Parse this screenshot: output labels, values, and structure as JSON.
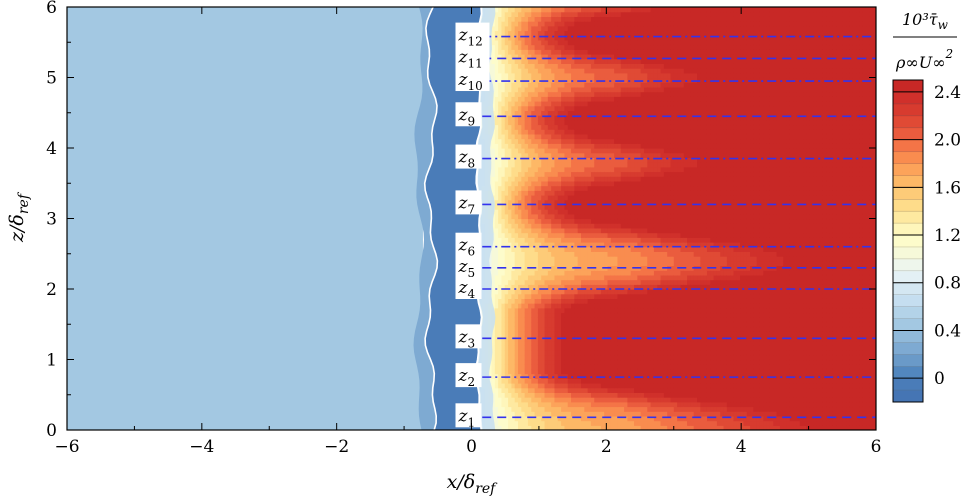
{
  "chart_data": {
    "type": "heatmap",
    "title": "",
    "xlabel": {
      "main": "x/δ",
      "sub": "ref"
    },
    "ylabel": {
      "main": "z/δ",
      "sub": "ref"
    },
    "xlim": [
      -6,
      6
    ],
    "ylim": [
      0,
      6
    ],
    "x_ticks": [
      -6,
      -4,
      -2,
      0,
      2,
      4,
      6
    ],
    "x_tick_labels": [
      "−6",
      "−4",
      "−2",
      "0",
      "2",
      "4",
      "6"
    ],
    "y_ticks": [
      0,
      1,
      2,
      3,
      4,
      5,
      6
    ],
    "y_tick_labels": [
      "0",
      "1",
      "2",
      "3",
      "4",
      "5",
      "6"
    ],
    "grid": false,
    "colorbar": {
      "label_numerator": "10³τ̄",
      "label_numerator_sub": "w",
      "label_denominator": "ρ∞U∞",
      "label_denominator_sup": "2",
      "range": [
        -0.2,
        2.5
      ],
      "levels": [
        -0.2,
        -0.1,
        0,
        0.1,
        0.2,
        0.3,
        0.4,
        0.5,
        0.6,
        0.7,
        0.8,
        0.9,
        1.0,
        1.1,
        1.2,
        1.3,
        1.4,
        1.5,
        1.6,
        1.7,
        1.8,
        1.9,
        2.0,
        2.1,
        2.2,
        2.3,
        2.4,
        2.5
      ],
      "ticks": [
        0,
        0.4,
        0.8,
        1.2,
        1.6,
        2.0,
        2.4
      ],
      "tick_labels": [
        "0",
        "0.4",
        "0.8",
        "1.2",
        "1.6",
        "2.0",
        "2.4"
      ],
      "colors": [
        "#4575b4",
        "#4a7cb8",
        "#5287be",
        "#6a9ac8",
        "#7eaad2",
        "#90b9da",
        "#a3c8e2",
        "#b3d3e8",
        "#c5def0",
        "#d4e7f2",
        "#e3f0f5",
        "#eef6ec",
        "#f6f9d9",
        "#fdfccb",
        "#fef6bb",
        "#fee9a0",
        "#fedc8a",
        "#fdcb78",
        "#fdb866",
        "#fca35a",
        "#f98c4f",
        "#f47447",
        "#ea5c3e",
        "#e04a35",
        "#d73b2f",
        "#d0302b",
        "#c82826"
      ]
    },
    "upstream_value": 0.45,
    "reattachment_x": 0.1,
    "separation_x": -0.6,
    "stations": [
      {
        "label": "z",
        "sub": "1",
        "z": 0.18,
        "style": "dashed"
      },
      {
        "label": "z",
        "sub": "2",
        "z": 0.75,
        "style": "dashdot"
      },
      {
        "label": "z",
        "sub": "3",
        "z": 1.3,
        "style": "dashed"
      },
      {
        "label": "z",
        "sub": "4",
        "z": 2.0,
        "style": "dashdot"
      },
      {
        "label": "z",
        "sub": "5",
        "z": 2.3,
        "style": "dashed"
      },
      {
        "label": "z",
        "sub": "6",
        "z": 2.6,
        "style": "dashdot"
      },
      {
        "label": "z",
        "sub": "7",
        "z": 3.2,
        "style": "dashed"
      },
      {
        "label": "z",
        "sub": "8",
        "z": 3.85,
        "style": "dashdot"
      },
      {
        "label": "z",
        "sub": "9",
        "z": 4.45,
        "style": "dashed"
      },
      {
        "label": "z",
        "sub": "10",
        "z": 4.95,
        "style": "dashdot"
      },
      {
        "label": "z",
        "sub": "11",
        "z": 5.27,
        "style": "dashed"
      },
      {
        "label": "z",
        "sub": "12",
        "z": 5.58,
        "style": "dashdot"
      }
    ],
    "station_line_color": "#3333ee",
    "station_x_range": [
      0.1,
      6
    ]
  }
}
